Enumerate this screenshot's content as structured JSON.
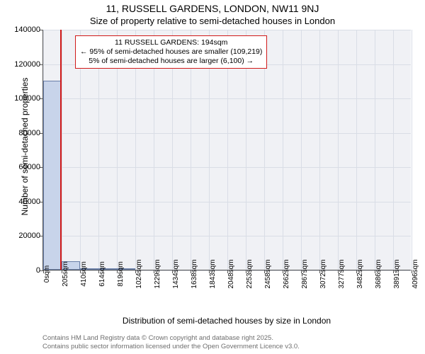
{
  "title_main": "11, RUSSELL GARDENS, LONDON, NW11 9NJ",
  "title_sub": "Size of property relative to semi-detached houses in London",
  "ylabel": "Number of semi-detached properties",
  "xlabel": "Distribution of semi-detached houses by size in London",
  "footer_line1": "Contains HM Land Registry data © Crown copyright and database right 2025.",
  "footer_line2": "Contains public sector information licensed under the Open Government Licence v3.0.",
  "chart": {
    "type": "histogram",
    "plot_bg": "#f0f1f5",
    "grid_color": "#d9dde6",
    "axis_color": "#555555",
    "bar_fill": "#c8d4ea",
    "bar_border": "#6a7fa8",
    "marker_color": "#d11919",
    "annotation_border": "#d11919",
    "text_color": "#000000",
    "xlim": [
      0,
      4096
    ],
    "ylim": [
      0,
      140000
    ],
    "xtick_step": 205,
    "ytick_step": 20000,
    "x_unit_suffix": "sqm",
    "bin_width_sqm": 205,
    "marker_x": 194,
    "bars": [
      {
        "x0": 0,
        "count": 110000
      },
      {
        "x0": 205,
        "count": 5000
      },
      {
        "x0": 410,
        "count": 800
      },
      {
        "x0": 614,
        "count": 300
      },
      {
        "x0": 819,
        "count": 120
      }
    ],
    "xticks": [
      0,
      205,
      410,
      614,
      819,
      1024,
      1229,
      1434,
      1638,
      1843,
      2048,
      2253,
      2458,
      2662,
      2867,
      3072,
      3277,
      3482,
      3686,
      3891,
      4096
    ],
    "yticks": [
      0,
      20000,
      40000,
      60000,
      80000,
      100000,
      120000,
      140000
    ],
    "label_fontsize": 12,
    "tick_fontsize": 11,
    "title_fontsize": 14,
    "annotation_fontsize": 10.5
  },
  "annotation": {
    "line1": "11 RUSSELL GARDENS: 194sqm",
    "line2": "← 95% of semi-detached houses are smaller (109,219)",
    "line3": "5% of semi-detached houses are larger (6,100) →"
  }
}
